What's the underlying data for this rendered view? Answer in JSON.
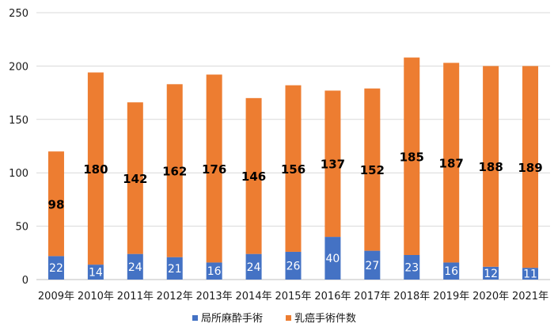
{
  "chart_data": {
    "type": "bar",
    "stacked": true,
    "categories": [
      "2009年",
      "2010年",
      "2011年",
      "2012年",
      "2013年",
      "2014年",
      "2015年",
      "2016年",
      "2017年",
      "2018年",
      "2019年",
      "2020年",
      "2021年"
    ],
    "series": [
      {
        "name": "局所麻酔手術",
        "color": "#4472C4",
        "values": [
          22,
          14,
          24,
          21,
          16,
          24,
          26,
          40,
          27,
          23,
          16,
          12,
          11
        ]
      },
      {
        "name": "乳癌手術件数",
        "color": "#ED7D31",
        "values": [
          98,
          180,
          142,
          162,
          176,
          146,
          156,
          137,
          152,
          185,
          187,
          188,
          189
        ]
      }
    ],
    "ylim": [
      0,
      250
    ],
    "yticks": [
      0,
      50,
      100,
      150,
      200,
      250
    ],
    "grid": true,
    "legend_position": "bottom",
    "title": "",
    "xlabel": "",
    "ylabel": ""
  }
}
